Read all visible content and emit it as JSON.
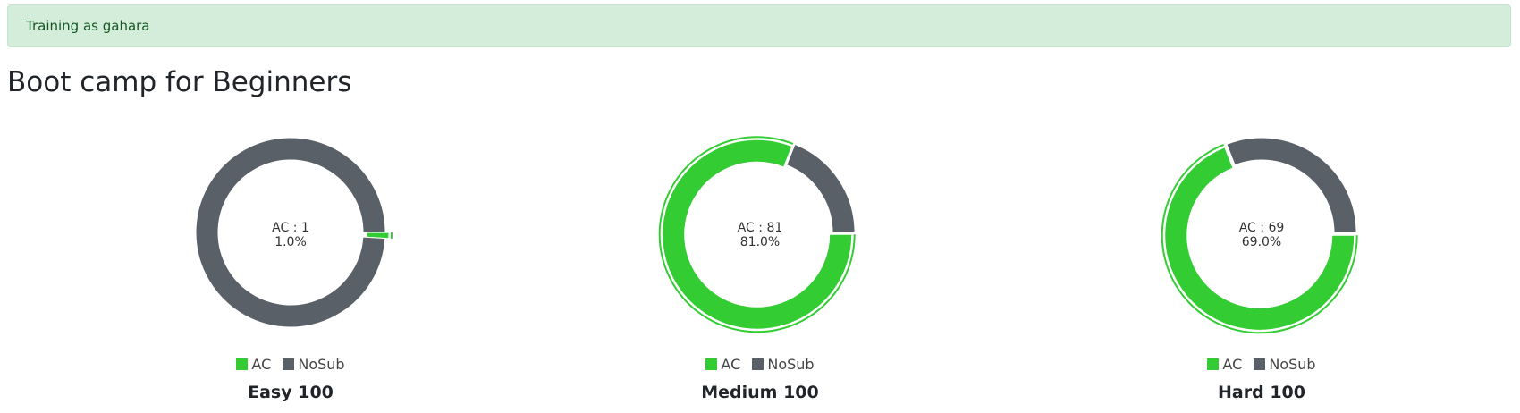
{
  "alert": {
    "text": "Training as gahara"
  },
  "page": {
    "title": "Boot camp for Beginners"
  },
  "colors": {
    "ac": "#33cc33",
    "nosub": "#5a6068",
    "alert_bg": "#d4edda",
    "alert_text": "#155724"
  },
  "chart_data": [
    {
      "type": "pie",
      "label": "Easy 100",
      "categories": [
        "AC",
        "NoSub"
      ],
      "values": [
        1,
        99
      ],
      "center_lines": [
        "AC : 1",
        "1.0%"
      ],
      "legend": [
        "AC",
        "NoSub"
      ],
      "highlighted": "AC"
    },
    {
      "type": "pie",
      "label": "Medium 100",
      "categories": [
        "AC",
        "NoSub"
      ],
      "values": [
        81,
        19
      ],
      "center_lines": [
        "AC : 81",
        "81.0%"
      ],
      "legend": [
        "AC",
        "NoSub"
      ],
      "highlighted": "AC"
    },
    {
      "type": "pie",
      "label": "Hard 100",
      "categories": [
        "AC",
        "NoSub"
      ],
      "values": [
        69,
        31
      ],
      "center_lines": [
        "AC : 69",
        "69.0%"
      ],
      "legend": [
        "AC",
        "NoSub"
      ],
      "highlighted": "AC"
    }
  ]
}
